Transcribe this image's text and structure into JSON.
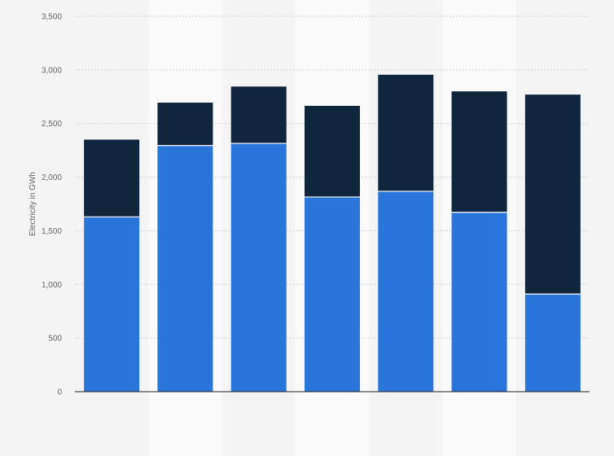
{
  "chart_data": {
    "type": "bar",
    "stacked": true,
    "title": "",
    "xlabel": "",
    "ylabel": "Electricity in GWh",
    "ylim": [
      0,
      3500
    ],
    "yticks": [
      0,
      500,
      1000,
      1500,
      2000,
      2500,
      3000,
      3500
    ],
    "ytick_labels": [
      "0",
      "500",
      "1,000",
      "1,500",
      "2,000",
      "2,500",
      "3,000",
      "3,500"
    ],
    "grid": true,
    "legend": "none",
    "categories": [
      "",
      "",
      "",
      "",
      "",
      "",
      ""
    ],
    "series": [
      {
        "values": [
          1630,
          2295,
          2315,
          1815,
          1868,
          1672,
          910
        ],
        "color": "#2a75d9"
      },
      {
        "values": [
          720,
          400,
          530,
          850,
          1087,
          1128,
          1860
        ],
        "color": "#10263d"
      }
    ]
  },
  "colors": {
    "background": "#f4f4f4",
    "alt_band": "#fafafa",
    "gridline": "#cfcfcf",
    "axis": "#222222",
    "text": "#666666"
  }
}
